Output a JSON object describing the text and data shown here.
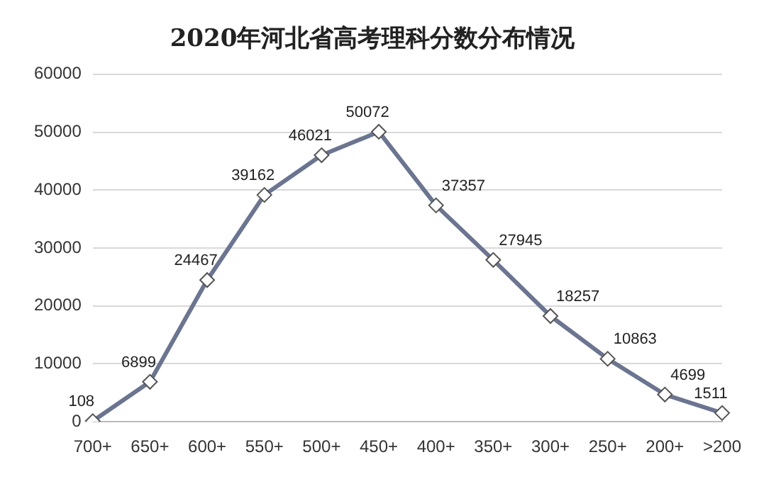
{
  "chart_data": {
    "type": "line",
    "title": "2020年河北省高考理科分数分布情况",
    "categories": [
      "700+",
      "650+",
      "600+",
      "550+",
      "500+",
      "450+",
      "400+",
      "350+",
      "300+",
      "250+",
      "200+",
      ">200"
    ],
    "series": [
      {
        "color": "#6b7590",
        "values": [
          108,
          6899,
          24467,
          39162,
          46021,
          50072,
          37357,
          27945,
          18257,
          10863,
          4699,
          1511
        ]
      }
    ],
    "ylim": [
      0,
      60000
    ],
    "yticks": [
      0,
      10000,
      20000,
      30000,
      40000,
      50000,
      60000
    ],
    "grid": "y",
    "marker": "diamond",
    "line_style": "solid",
    "data_labels": true,
    "legend": false
  }
}
